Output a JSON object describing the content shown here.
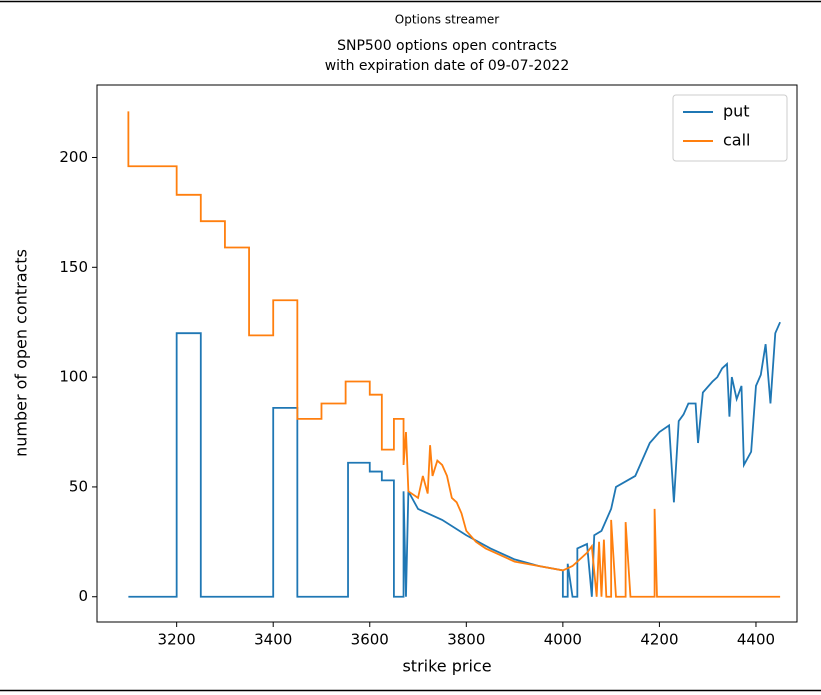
{
  "chart_data": {
    "type": "line",
    "suptitle": "Options streamer",
    "title": [
      "SNP500 options open contracts",
      "with expiration date of 09-07-2022"
    ],
    "x_label": "strike price",
    "y_label": "number of open contracts",
    "xlim": [
      3035,
      4485
    ],
    "ylim": [
      -11.5,
      233
    ],
    "xticks": [
      3200,
      3400,
      3600,
      3800,
      4000,
      4200,
      4400
    ],
    "yticks": [
      0,
      50,
      100,
      150,
      200
    ],
    "legend": "upper right",
    "series": [
      {
        "name": "put",
        "color": "#1f77b4",
        "x": [
          3100,
          3200,
          3200,
          3250,
          3250,
          3400,
          3400,
          3450,
          3450,
          3555,
          3555,
          3600,
          3600,
          3625,
          3625,
          3650,
          3650,
          3670,
          3670,
          3675,
          3680,
          3700,
          3750,
          3800,
          3850,
          3900,
          3950,
          4000,
          4000,
          4010,
          4010,
          4020,
          4030,
          4030,
          4050,
          4060,
          4065,
          4080,
          4100,
          4110,
          4150,
          4160,
          4170,
          4180,
          4200,
          4220,
          4230,
          4240,
          4250,
          4260,
          4275,
          4280,
          4290,
          4310,
          4320,
          4330,
          4340,
          4345,
          4350,
          4360,
          4370,
          4375,
          4390,
          4400,
          4410,
          4420,
          4430,
          4440,
          4450
        ],
        "values": [
          0,
          0,
          120,
          120,
          0,
          0,
          86,
          86,
          0,
          0,
          61,
          61,
          57,
          57,
          53,
          53,
          0,
          0,
          48,
          0,
          48,
          40,
          35,
          28,
          22,
          17,
          14,
          12,
          0,
          0,
          15,
          0,
          0,
          22,
          24,
          0,
          28,
          30,
          40,
          50,
          55,
          60,
          65,
          70,
          75,
          78,
          43,
          80,
          83,
          88,
          88,
          70,
          93,
          98,
          100,
          104,
          106,
          82,
          100,
          90,
          96,
          60,
          66,
          96,
          101,
          115,
          88,
          120,
          125
        ]
      },
      {
        "name": "call",
        "color": "#ff7f0e",
        "x": [
          3100,
          3100,
          3200,
          3200,
          3250,
          3250,
          3300,
          3300,
          3350,
          3350,
          3400,
          3400,
          3450,
          3450,
          3500,
          3500,
          3550,
          3550,
          3600,
          3600,
          3625,
          3625,
          3650,
          3650,
          3670,
          3670,
          3675,
          3680,
          3700,
          3710,
          3720,
          3725,
          3730,
          3740,
          3750,
          3760,
          3770,
          3780,
          3790,
          3800,
          3820,
          3840,
          3860,
          3880,
          3900,
          3950,
          4000,
          4020,
          4050,
          4060,
          4070,
          4075,
          4080,
          4085,
          4090,
          4100,
          4100,
          4110,
          4130,
          4130,
          4140,
          4190,
          4190,
          4195,
          4450
        ],
        "values": [
          221,
          196,
          196,
          183,
          183,
          171,
          171,
          159,
          159,
          119,
          119,
          135,
          135,
          81,
          81,
          88,
          88,
          98,
          98,
          92,
          92,
          67,
          67,
          81,
          81,
          60,
          75,
          48,
          45,
          55,
          47,
          69,
          55,
          62,
          60,
          55,
          45,
          43,
          38,
          30,
          25,
          22,
          20,
          18,
          16,
          14,
          12,
          14,
          20,
          23,
          0,
          25,
          0,
          26,
          0,
          0,
          35,
          0,
          0,
          34,
          0,
          0,
          40,
          0,
          0
        ]
      }
    ]
  }
}
